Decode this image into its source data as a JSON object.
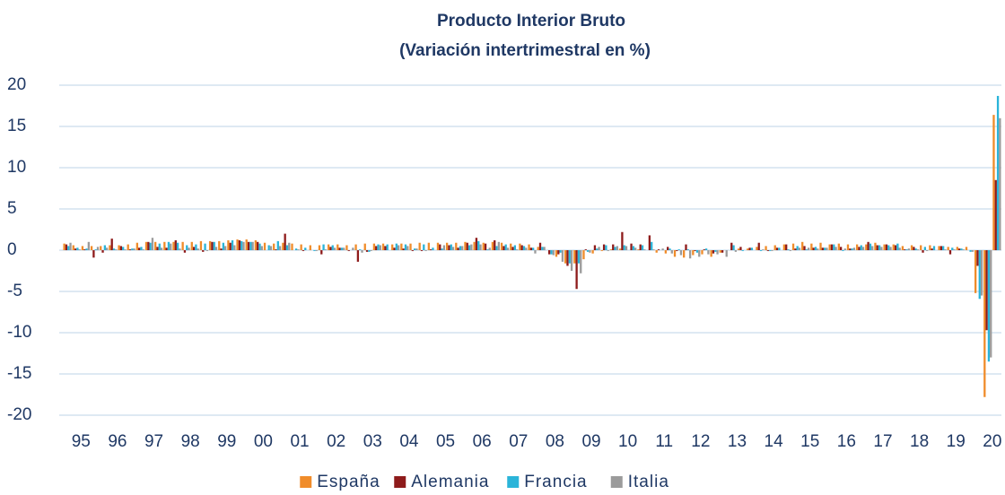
{
  "chart_data": {
    "type": "bar",
    "title": "Producto  Interior  Bruto",
    "subtitle": "(Variación intertrimestral  en %)",
    "categories": [
      null,
      "95",
      null,
      null,
      null,
      "96",
      null,
      null,
      null,
      "97",
      null,
      null,
      null,
      "98",
      null,
      null,
      null,
      "99",
      null,
      null,
      null,
      "00",
      null,
      null,
      null,
      "01",
      null,
      null,
      null,
      "02",
      null,
      null,
      null,
      "03",
      null,
      null,
      null,
      "04",
      null,
      null,
      null,
      "05",
      null,
      null,
      null,
      "06",
      null,
      null,
      null,
      "07",
      null,
      null,
      null,
      "08",
      null,
      null,
      null,
      "09",
      null,
      null,
      null,
      "10",
      null,
      null,
      null,
      "11",
      null,
      null,
      null,
      "12",
      null,
      null,
      null,
      "13",
      null,
      null,
      null,
      "14",
      null,
      null,
      null,
      "15",
      null,
      null,
      null,
      "16",
      null,
      null,
      null,
      "17",
      null,
      null,
      null,
      "18",
      null,
      null,
      null,
      "19",
      null,
      null,
      null,
      "20",
      null
    ],
    "series": [
      {
        "name": "España",
        "color": "#f08c2a",
        "values": [
          0.8,
          0.6,
          0.5,
          0.5,
          0.5,
          0.6,
          0.6,
          0.7,
          0.9,
          1.0,
          1.0,
          1.0,
          1.0,
          1.0,
          1.0,
          1.1,
          1.1,
          1.1,
          1.2,
          1.3,
          1.3,
          1.2,
          0.9,
          0.8,
          0.9,
          0.8,
          0.7,
          0.6,
          0.6,
          0.7,
          0.7,
          0.6,
          0.7,
          0.8,
          0.8,
          0.8,
          0.7,
          0.8,
          0.8,
          0.9,
          0.9,
          0.9,
          0.9,
          0.9,
          1.0,
          1.0,
          0.9,
          1.0,
          0.9,
          0.8,
          0.8,
          0.7,
          0.4,
          0.0,
          -0.8,
          -1.6,
          -1.6,
          -1.1,
          -0.4,
          -0.1,
          0.1,
          0.2,
          0.0,
          0.1,
          0.0,
          -0.3,
          -0.4,
          -0.8,
          -0.9,
          -0.6,
          -0.5,
          -0.8,
          -0.3,
          0.0,
          0.2,
          0.2,
          0.4,
          0.5,
          0.6,
          0.7,
          0.8,
          1.0,
          0.8,
          0.9,
          0.7,
          0.8,
          0.7,
          0.7,
          0.7,
          0.9,
          0.7,
          0.7,
          0.5,
          0.6,
          0.6,
          0.6,
          0.5,
          0.4,
          0.4,
          0.4,
          -5.2,
          -17.8,
          16.4
        ]
      },
      {
        "name": "Alemania",
        "color": "#8e1b1b",
        "values": [
          0.7,
          0.2,
          0.1,
          -0.9,
          -0.3,
          1.4,
          0.5,
          0.1,
          0.3,
          1.0,
          0.4,
          0.3,
          1.2,
          -0.3,
          0.4,
          -0.2,
          1.0,
          0.2,
          0.9,
          1.2,
          1.0,
          1.0,
          0.0,
          0.1,
          2.0,
          0.0,
          -0.1,
          0.0,
          -0.5,
          0.4,
          0.3,
          -0.1,
          -1.4,
          -0.2,
          0.5,
          0.5,
          0.3,
          0.2,
          -0.1,
          -0.1,
          0.1,
          0.7,
          0.6,
          0.3,
          0.9,
          1.5,
          0.8,
          1.2,
          0.5,
          0.4,
          0.6,
          0.3,
          0.9,
          -0.5,
          -0.5,
          -1.9,
          -4.7,
          0.1,
          0.6,
          0.7,
          0.7,
          2.2,
          0.8,
          0.7,
          1.8,
          0.1,
          0.4,
          -0.1,
          0.7,
          -0.1,
          0.1,
          -0.4,
          -0.3,
          0.9,
          0.4,
          0.3,
          0.9,
          -0.1,
          0.3,
          0.7,
          0.2,
          0.5,
          0.3,
          0.3,
          0.7,
          0.4,
          0.2,
          0.4,
          1.0,
          0.6,
          0.7,
          0.6,
          0.1,
          0.4,
          -0.3,
          0.2,
          0.5,
          -0.5,
          0.2,
          0.0,
          -1.9,
          -9.7,
          8.5
        ]
      },
      {
        "name": "Francia",
        "color": "#2ab4d9",
        "values": [
          0.5,
          0.3,
          0.2,
          0.1,
          0.6,
          0.2,
          0.4,
          0.2,
          0.4,
          0.9,
          0.8,
          1.0,
          0.9,
          0.6,
          0.7,
          0.8,
          1.0,
          0.9,
          1.2,
          1.1,
          1.0,
          0.8,
          0.6,
          1.1,
          0.6,
          0.2,
          0.3,
          -0.1,
          0.7,
          0.6,
          0.3,
          0.0,
          0.1,
          -0.2,
          0.7,
          0.7,
          0.8,
          0.7,
          0.2,
          0.7,
          0.3,
          0.2,
          0.7,
          0.5,
          0.6,
          1.1,
          0.1,
          0.5,
          0.7,
          0.6,
          0.5,
          0.3,
          0.4,
          -0.5,
          -0.3,
          -1.6,
          -1.6,
          -0.2,
          0.2,
          0.6,
          0.4,
          0.6,
          0.5,
          0.6,
          1.0,
          0.0,
          0.2,
          0.1,
          0.1,
          -0.3,
          0.2,
          -0.2,
          0.0,
          0.6,
          -0.1,
          0.3,
          -0.1,
          -0.1,
          0.3,
          0.1,
          0.5,
          0.1,
          0.4,
          0.3,
          0.7,
          -0.1,
          0.2,
          0.6,
          0.8,
          0.6,
          0.6,
          0.8,
          0.1,
          0.2,
          0.4,
          0.5,
          0.5,
          0.3,
          0.2,
          -0.2,
          -5.9,
          -13.5,
          18.7
        ]
      },
      {
        "name": "Italia",
        "color": "#9b9b9b",
        "values": [
          0.9,
          0.1,
          1.0,
          0.4,
          0.3,
          0.1,
          0.1,
          0.2,
          0.1,
          1.5,
          0.3,
          0.8,
          0.2,
          0.3,
          0.2,
          -0.1,
          0.4,
          0.5,
          0.6,
          1.0,
          1.0,
          0.5,
          0.5,
          0.5,
          0.9,
          0.1,
          0.0,
          -0.1,
          0.1,
          0.3,
          0.3,
          0.3,
          -0.3,
          -0.1,
          0.6,
          0.0,
          0.6,
          0.5,
          0.2,
          -0.1,
          0.0,
          0.6,
          0.4,
          0.5,
          0.7,
          0.7,
          0.3,
          1.0,
          0.3,
          0.1,
          0.3,
          -0.4,
          0.4,
          -0.6,
          -1.4,
          -2.5,
          -2.8,
          -0.3,
          0.4,
          -0.1,
          0.5,
          0.5,
          0.3,
          0.1,
          0.1,
          0.2,
          -0.4,
          -0.6,
          -1.0,
          -0.8,
          -0.5,
          -0.5,
          -0.8,
          -0.2,
          0.0,
          0.0,
          0.1,
          -0.1,
          0.0,
          -0.1,
          0.3,
          0.3,
          0.2,
          0.3,
          0.4,
          0.2,
          0.3,
          0.4,
          0.5,
          0.4,
          0.4,
          0.3,
          0.2,
          0.1,
          -0.1,
          0.0,
          0.1,
          0.1,
          0.1,
          -0.2,
          -5.5,
          -13.0,
          16.0
        ]
      }
    ],
    "ylim": [
      -20,
      20
    ],
    "yticks": [
      -20,
      -15,
      -10,
      -5,
      0,
      5,
      10,
      15,
      20
    ],
    "grid": true,
    "legend": "bottom"
  }
}
